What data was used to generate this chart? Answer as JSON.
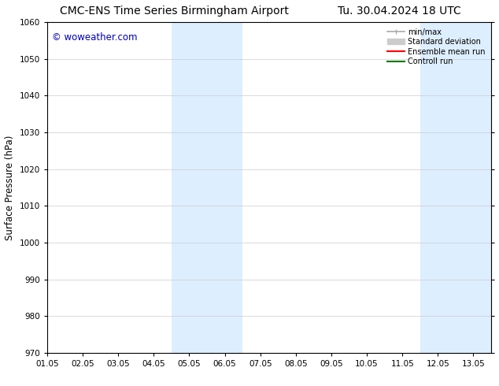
{
  "title_left": "CMC-ENS Time Series Birmingham Airport",
  "title_right": "Tu. 30.04.2024 18 UTC",
  "ylabel": "Surface Pressure (hPa)",
  "ylim": [
    970,
    1060
  ],
  "yticks": [
    970,
    980,
    990,
    1000,
    1010,
    1020,
    1030,
    1040,
    1050,
    1060
  ],
  "xlim_start": 0,
  "xlim_end": 12.5,
  "xtick_labels": [
    "01.05",
    "02.05",
    "03.05",
    "04.05",
    "05.05",
    "06.05",
    "07.05",
    "08.05",
    "09.05",
    "10.05",
    "11.05",
    "12.05",
    "13.05"
  ],
  "xtick_positions": [
    0,
    1,
    2,
    3,
    4,
    5,
    6,
    7,
    8,
    9,
    10,
    11,
    12
  ],
  "shaded_bands": [
    {
      "x_start": 3.5,
      "x_end": 5.5
    },
    {
      "x_start": 10.5,
      "x_end": 12.5
    }
  ],
  "shaded_color": "#ddeeff",
  "watermark_text": "© woweather.com",
  "watermark_color": "#0000bb",
  "legend_entries": [
    {
      "label": "min/max",
      "color": "#aaaaaa",
      "lw": 1.2
    },
    {
      "label": "Standard deviation",
      "color": "#cccccc",
      "lw": 6
    },
    {
      "label": "Ensemble mean run",
      "color": "#ff0000",
      "lw": 1.5
    },
    {
      "label": "Controll run",
      "color": "#007700",
      "lw": 1.5
    }
  ],
  "background_color": "#ffffff",
  "grid_color": "#cccccc",
  "title_fontsize": 10,
  "tick_fontsize": 7.5,
  "label_fontsize": 8.5,
  "watermark_fontsize": 8.5
}
